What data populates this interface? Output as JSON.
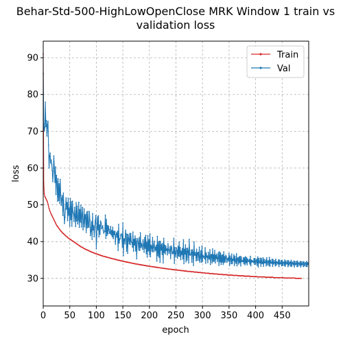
{
  "chart_data": {
    "type": "line",
    "title_line1": "Behar-Std-500-HighLowOpenClose MRK Window 1 train vs",
    "title_line2": "validation loss",
    "xlabel": "epoch",
    "ylabel": "loss",
    "xlim": [
      0,
      500
    ],
    "ylim": [
      22.5,
      94.5
    ],
    "xticks": [
      0,
      50,
      100,
      150,
      200,
      250,
      300,
      350,
      400,
      450
    ],
    "yticks": [
      30,
      40,
      50,
      60,
      70,
      80,
      90
    ],
    "grid": true,
    "legend_position": "upper right",
    "epochs": 500,
    "series": [
      {
        "name": "Train",
        "color": "#d62728",
        "values": [
          91.0,
          56.0,
          53.0,
          52.3,
          52.0,
          51.7,
          51.4,
          51.1,
          50.8,
          50.2,
          49.5,
          49.0,
          48.6,
          48.2,
          47.8,
          47.5,
          47.2,
          46.9,
          46.6,
          46.3,
          46.0,
          45.7,
          45.4,
          45.1,
          44.8,
          44.5,
          44.3,
          44.1,
          43.9,
          43.7,
          43.5,
          43.3,
          43.1,
          42.9,
          42.8,
          42.6,
          42.4,
          42.3,
          42.2,
          42.0,
          41.9,
          41.8,
          41.6,
          41.5,
          41.4,
          41.3,
          41.1,
          41.0,
          40.9,
          40.8,
          40.7,
          40.6,
          40.5,
          40.4,
          40.3,
          40.2,
          40.1,
          40.0,
          39.9,
          39.8,
          39.7,
          39.6,
          39.5,
          39.4,
          39.3,
          39.2,
          39.1,
          39.0,
          38.9,
          38.8,
          38.7,
          38.6,
          38.5,
          38.5,
          38.4,
          38.3,
          38.2,
          38.1,
          38.0,
          38.0,
          37.9,
          37.8,
          37.8,
          37.7,
          37.6,
          37.6,
          37.5,
          37.4,
          37.4,
          37.3,
          37.2,
          37.2,
          37.1,
          37.1,
          37.0,
          36.9,
          36.9,
          36.8,
          36.8,
          36.7,
          36.7,
          36.6,
          36.6,
          36.5,
          36.5,
          36.4,
          36.4,
          36.3,
          36.3,
          36.2,
          36.2,
          36.1,
          36.1,
          36.0,
          36.0,
          36.0,
          35.9,
          35.9,
          35.8,
          35.8,
          35.8,
          35.7,
          35.7,
          35.6,
          35.6,
          35.6,
          35.5,
          35.5,
          35.4,
          35.4,
          35.4,
          35.3,
          35.3,
          35.3,
          35.2,
          35.2,
          35.2,
          35.1,
          35.1,
          35.0,
          35.0,
          35.0,
          34.9,
          34.9,
          34.9,
          34.8,
          34.8,
          34.8,
          34.7,
          34.7,
          34.7,
          34.6,
          34.6,
          34.6,
          34.5,
          34.5,
          34.5,
          34.4,
          34.4,
          34.4,
          34.4,
          34.3,
          34.3,
          34.3,
          34.2,
          34.2,
          34.2,
          34.1,
          34.1,
          34.1,
          34.1,
          34.0,
          34.0,
          34.0,
          33.9,
          33.9,
          33.9,
          33.9,
          33.8,
          33.8,
          33.8,
          33.8,
          33.7,
          33.7,
          33.7,
          33.7,
          33.6,
          33.6,
          33.6,
          33.6,
          33.5,
          33.5,
          33.5,
          33.5,
          33.4,
          33.4,
          33.4,
          33.4,
          33.3,
          33.3,
          33.3,
          33.3,
          33.3,
          33.2,
          33.2,
          33.2,
          33.2,
          33.1,
          33.1,
          33.1,
          33.1,
          33.1,
          33.0,
          33.0,
          33.0,
          33.0,
          32.9,
          32.9,
          32.9,
          32.9,
          32.9,
          32.8,
          32.8,
          32.8,
          32.8,
          32.8,
          32.7,
          32.7,
          32.7,
          32.7,
          32.7,
          32.6,
          32.6,
          32.6,
          32.6,
          32.6,
          32.5,
          32.5,
          32.5,
          32.5,
          32.5,
          32.5,
          32.4,
          32.4,
          32.4,
          32.4,
          32.4,
          32.3,
          32.3,
          32.3,
          32.3,
          32.3,
          32.3,
          32.2,
          32.2,
          32.2,
          32.2,
          32.2,
          32.2,
          32.1,
          32.1,
          32.1,
          32.1,
          32.1,
          32.1,
          32.0,
          32.0,
          32.0,
          32.0,
          32.0,
          32.0,
          31.9,
          31.9,
          31.9,
          31.9,
          31.9,
          31.9,
          31.9,
          31.8,
          31.8,
          31.8,
          31.8,
          31.8,
          31.8,
          31.7,
          31.7,
          31.7,
          31.7,
          31.7,
          31.7,
          31.7,
          31.6,
          31.6,
          31.6,
          31.6,
          31.6,
          31.6,
          31.6,
          31.5,
          31.5,
          31.5,
          31.5,
          31.5,
          31.5,
          31.5,
          31.4,
          31.4,
          31.4,
          31.4,
          31.4,
          31.4,
          31.4,
          31.4,
          31.3,
          31.3,
          31.3,
          31.3,
          31.3,
          31.3,
          31.3,
          31.3,
          31.2,
          31.2,
          31.2,
          31.2,
          31.2,
          31.2,
          31.2,
          31.2,
          31.1,
          31.1,
          31.1,
          31.1,
          31.1,
          31.1,
          31.1,
          31.1,
          31.1,
          31.0,
          31.0,
          31.0,
          31.0,
          31.0,
          31.0,
          31.0,
          31.0,
          31.0,
          30.9,
          30.9,
          30.9,
          30.9,
          30.9,
          30.9,
          30.9,
          30.9,
          30.9,
          30.9,
          30.8,
          30.8,
          30.8,
          30.8,
          30.8,
          30.8,
          30.8,
          30.8,
          30.8,
          30.8,
          30.7,
          30.7,
          30.7,
          30.7,
          30.7,
          30.7,
          30.7,
          30.7,
          30.7,
          30.7,
          30.7,
          30.6,
          30.6,
          30.6,
          30.6,
          30.6,
          30.6,
          30.6,
          30.6,
          30.6,
          30.6,
          30.6,
          30.6,
          30.5,
          30.5,
          30.5,
          30.5,
          30.5,
          30.5,
          30.5,
          30.5,
          30.5,
          30.5,
          30.5,
          30.5,
          30.5,
          30.4,
          30.4,
          30.4,
          30.4,
          30.4,
          30.4,
          30.4,
          30.4,
          30.4,
          30.4,
          30.4,
          30.4,
          30.4,
          30.4,
          30.4,
          30.3,
          30.3,
          30.3,
          30.3,
          30.3,
          30.3,
          30.3,
          30.3,
          30.3,
          30.3,
          30.3,
          30.3,
          30.3,
          30.3,
          30.3,
          30.3,
          30.2,
          30.2,
          30.2,
          30.2,
          30.2,
          30.2,
          30.2,
          30.2,
          30.2,
          30.2,
          30.2,
          30.2,
          30.2,
          30.2,
          30.2,
          30.2,
          30.2,
          30.2,
          30.2,
          30.1,
          30.1,
          30.1,
          30.1,
          30.1,
          30.1,
          30.1,
          30.1,
          30.1,
          30.1,
          30.1,
          30.1,
          30.1,
          30.1,
          30.1,
          30.1,
          30.1,
          30.1,
          30.1,
          30.1,
          30.1,
          30.1,
          30.0,
          30.0,
          30.0,
          30.0,
          30.0,
          30.0,
          30.0,
          30.0,
          30.0,
          30.0,
          30.0,
          30.0
        ]
      },
      {
        "name": "Val",
        "color": "#1f77b4",
        "values": [
          85.7,
          72.0,
          70.1,
          71.0,
          77.9,
          71.3,
          72.9,
          68.7,
          71.8,
          72.7,
          66.2,
          60.0,
          63.3,
          64.1,
          61.4,
          62.2,
          61.0,
          59.4,
          56.3,
          59.0,
          63.3,
          59.9,
          56.1,
          60.3,
          52.8,
          58.0,
          56.3,
          51.0,
          57.1,
          51.2,
          55.7,
          50.4,
          56.9,
          52.7,
          49.9,
          51.8,
          52.5,
          47.1,
          53.2,
          48.6,
          44.9,
          46.6,
          49.0,
          51.9,
          48.8,
          50.6,
          45.7,
          51.8,
          47.2,
          49.1,
          44.2,
          51.7,
          46.0,
          50.8,
          44.2,
          51.0,
          48.0,
          47.6,
          45.5,
          49.3,
          47.0,
          44.1,
          50.6,
          45.6,
          49.6,
          44.8,
          45.9,
          50.7,
          43.9,
          48.7,
          45.3,
          49.9,
          44.0,
          47.3,
          49.3,
          43.2,
          45.0,
          48.9,
          44.0,
          47.2,
          47.4,
          42.5,
          48.0,
          43.8,
          48.2,
          44.0,
          43.9,
          48.2,
          45.7,
          41.6,
          42.9,
          45.4,
          40.6,
          47.6,
          43.2,
          44.3,
          41.3,
          43.9,
          45.6,
          47.1,
          38.0,
          42.0,
          46.7,
          43.2,
          47.0,
          41.3,
          44.5,
          42.0,
          45.6,
          45.1,
          43.5,
          43.8,
          44.3,
          43.1,
          42.3,
          42.7,
          42.8,
          47.2,
          40.9,
          46.0,
          41.7,
          44.4,
          42.1,
          44.2,
          43.3,
          42.3,
          42.2,
          44.1,
          41.8,
          43.0,
          41.3,
          43.9,
          40.8,
          42.8,
          41.9,
          42.8,
          39.3,
          41.8,
          42.4,
          41.2,
          42.8,
          37.6,
          44.7,
          39.6,
          40.6,
          40.8,
          41.8,
          42.1,
          41.7,
          38.5,
          45.1,
          36.2,
          40.6,
          40.8,
          39.4,
          43.1,
          42.0,
          37.4,
          42.0,
          36.8,
          41.9,
          40.7,
          39.4,
          42.2,
          39.2,
          42.2,
          39.9,
          39.8,
          38.5,
          42.6,
          37.4,
          40.6,
          39.1,
          41.5,
          37.5,
          40.8,
          35.3,
          40.0,
          40.8,
          39.5,
          37.7,
          41.1,
          37.6,
          42.4,
          38.4,
          39.5,
          38.8,
          37.9,
          40.5,
          39.1,
          37.1,
          41.1,
          38.2,
          41.7,
          36.7,
          39.8,
          35.8,
          41.6,
          37.5,
          40.5,
          36.5,
          42.1,
          35.9,
          39.0,
          38.6,
          37.4,
          41.1,
          37.2,
          38.7,
          40.1,
          37.4,
          38.5,
          37.7,
          39.0,
          34.7,
          41.4,
          36.2,
          39.9,
          35.8,
          40.1,
          34.4,
          40.0,
          37.7,
          39.2,
          36.5,
          39.5,
          34.2,
          40.9,
          37.0,
          39.0,
          36.6,
          38.8,
          37.6,
          38.0,
          36.4,
          39.4,
          37.8,
          36.8,
          37.8,
          38.6,
          35.4,
          38.8,
          38.3,
          36.7,
          37.2,
          36.8,
          40.9,
          34.1,
          38.4,
          36.7,
          35.8,
          38.3,
          37.6,
          35.5,
          38.7,
          36.1,
          39.9,
          36.0,
          38.4,
          35.1,
          37.4,
          36.5,
          38.1,
          35.3,
          40.5,
          34.0,
          37.9,
          36.6,
          39.1,
          34.5,
          38.1,
          35.0,
          38.2,
          37.5,
          34.2,
          40.6,
          36.4,
          36.3,
          36.6,
          37.7,
          34.4,
          37.8,
          37.1,
          33.5,
          39.9,
          36.3,
          36.3,
          37.1,
          34.8,
          37.9,
          34.9,
          36.9,
          37.1,
          34.9,
          38.5,
          34.4,
          35.7,
          37.5,
          34.4,
          38.8,
          34.6,
          36.3,
          35.8,
          35.9,
          35.3,
          38.3,
          34.1,
          36.9,
          35.8,
          36.1,
          34.3,
          37.1,
          35.6,
          35.2,
          37.8,
          33.8,
          36.3,
          36.5,
          34.2,
          38.0,
          34.6,
          36.4,
          34.7,
          37.6,
          34.2,
          36.3,
          35.4,
          36.6,
          34.6,
          35.5,
          37.0,
          33.5,
          37.2,
          34.5,
          36.9,
          33.8,
          36.3,
          34.4,
          36.4,
          33.8,
          37.2,
          34.3,
          35.9,
          34.5,
          36.3,
          35.8,
          34.4,
          35.3,
          35.5,
          34.7,
          36.8,
          33.5,
          36.1,
          35.4,
          34.0,
          36.6,
          34.0,
          35.2,
          34.9,
          36.4,
          33.5,
          36.0,
          34.8,
          34.1,
          36.7,
          33.4,
          35.4,
          35.6,
          33.9,
          35.8,
          34.3,
          36.0,
          33.4,
          35.8,
          34.6,
          34.8,
          34.5,
          35.6,
          34.0,
          35.6,
          33.7,
          35.9,
          34.2,
          35.6,
          33.7,
          35.3,
          34.6,
          34.6,
          35.1,
          33.9,
          36.0,
          33.4,
          35.0,
          34.5,
          34.8,
          34.5,
          34.3,
          35.4,
          33.8,
          35.4,
          33.9,
          34.6,
          35.2,
          33.5,
          35.8,
          33.1,
          35.4,
          34.3,
          34.2,
          35.5,
          33.3,
          35.4,
          34.1,
          34.0,
          35.6,
          33.3,
          35.2,
          34.2,
          34.3,
          35.0,
          33.4,
          35.6,
          33.7,
          34.5,
          34.8,
          33.5,
          35.7,
          33.3,
          34.9,
          34.2,
          34.1,
          35.2,
          33.3,
          35.1,
          33.9,
          34.2,
          34.8,
          33.4,
          35.2,
          33.6,
          34.5,
          34.3,
          33.9,
          35.0,
          33.2,
          35.0,
          33.9,
          34.0,
          34.8,
          33.4,
          34.9,
          33.5,
          34.4,
          34.4,
          33.5,
          35.0,
          33.3,
          34.7,
          33.9,
          34.0,
          34.8,
          33.2,
          34.8,
          33.6,
          34.2,
          34.5,
          33.3,
          34.9,
          33.3,
          34.4,
          34.1,
          33.7,
          34.7,
          33.1,
          34.6,
          33.7,
          33.9,
          34.6,
          33.2,
          34.7,
          33.3,
          34.2,
          34.2,
          33.6,
          34.6,
          33.1,
          34.5,
          33.6,
          33.9,
          34.5,
          33.2,
          34.5,
          33.4,
          34.0,
          34.3,
          33.3,
          34.6,
          33.2,
          34.3,
          33.8
        ]
      }
    ]
  }
}
